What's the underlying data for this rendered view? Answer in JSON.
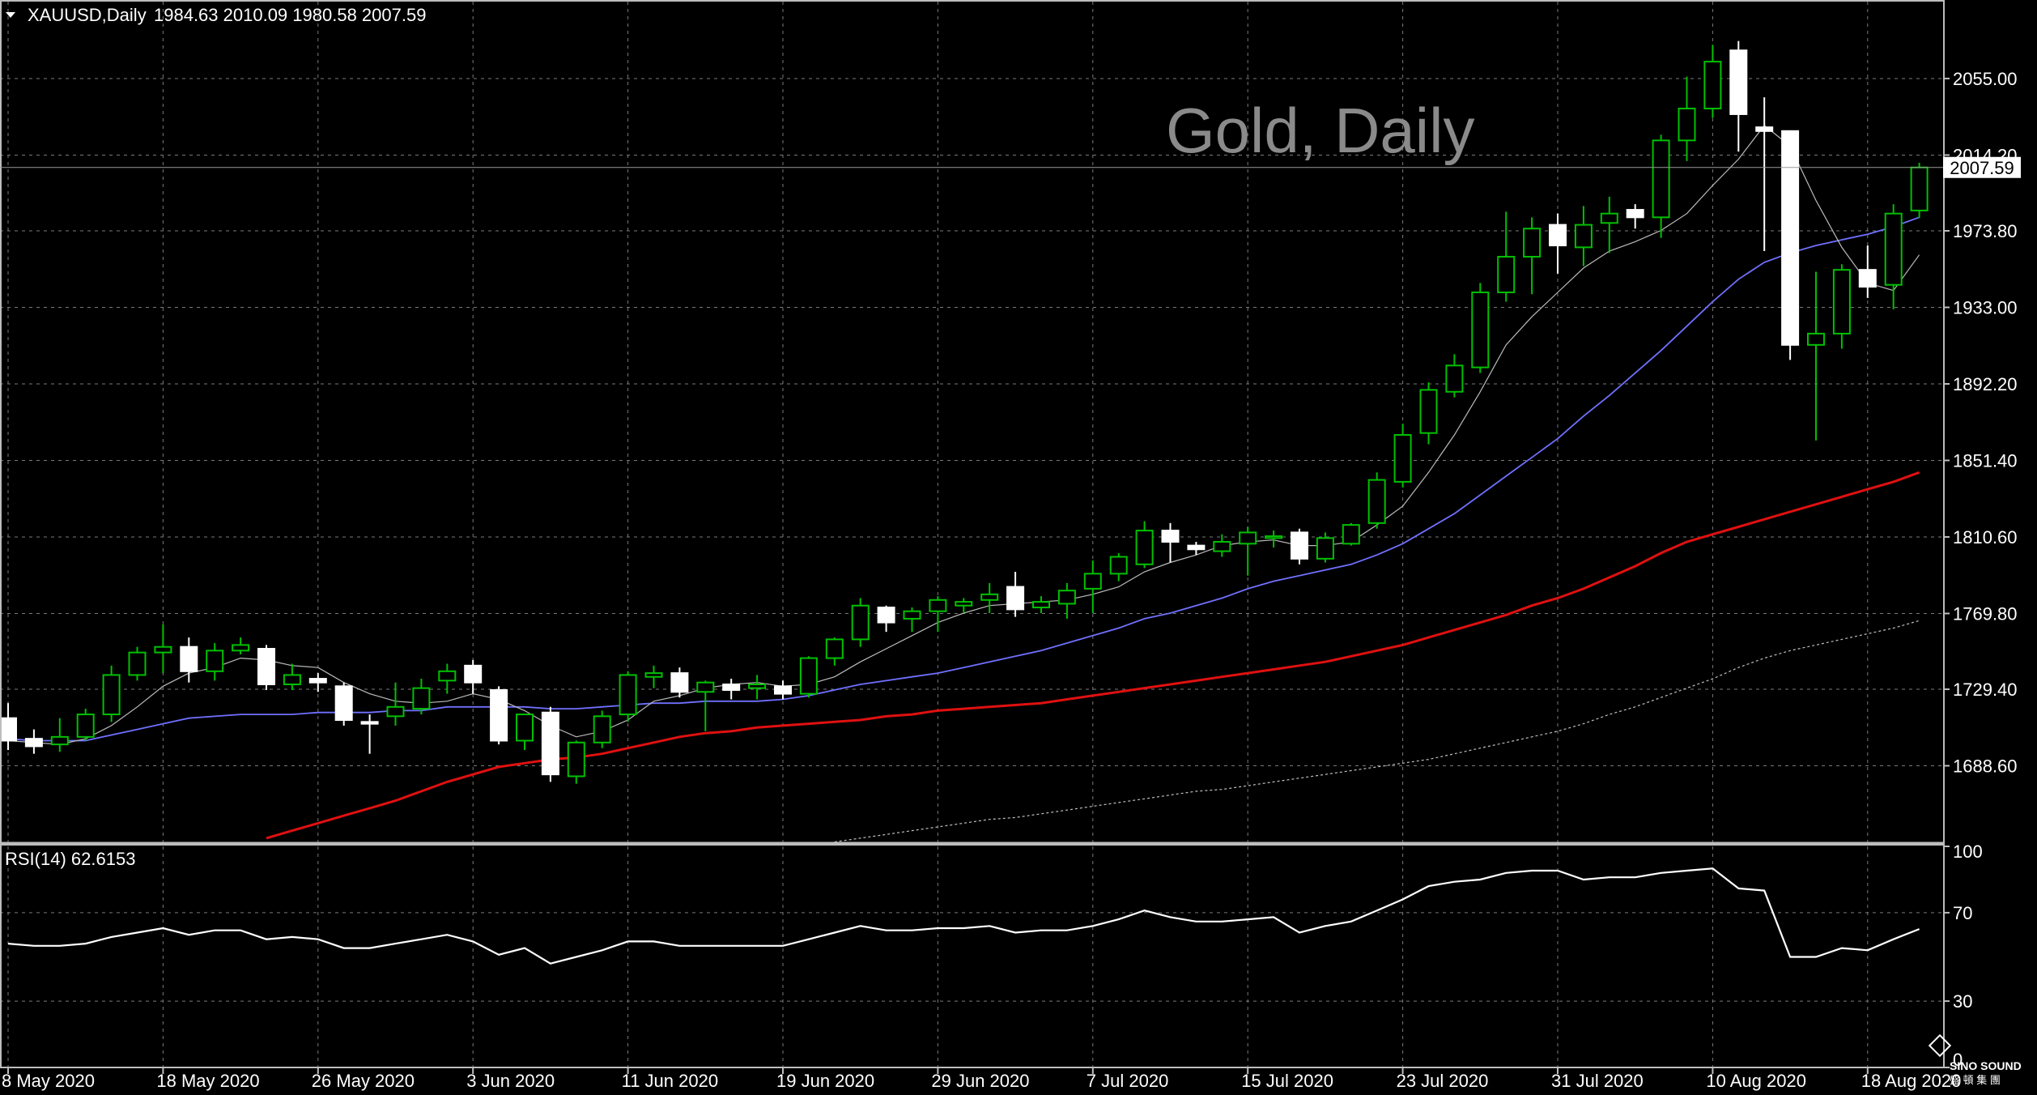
{
  "header": {
    "symbol_text": "XAUUSD,Daily",
    "ohlc_text": "1984.63 2010.09 1980.58 2007.59"
  },
  "watermark": "Gold, Daily",
  "rsi_header": "RSI(14) 62.6153",
  "current_price_label": "2007.59",
  "logo_text": "SINO SOUND",
  "logo_subtext": "盛 頓 集 團",
  "colors": {
    "background": "#000000",
    "grid": "#7a7a7a",
    "bull_candle": "#00c000",
    "bear_candle": "#ffffff",
    "ma_fast": "#bcbcbc",
    "ma_mid": "#7070ff",
    "ma_slow": "#e01010",
    "ma_long": "#c0c0c0",
    "rsi_line": "#ffffff"
  },
  "chart_data": [
    {
      "type": "candlestick",
      "name": "XAUUSD,Daily",
      "ylim": [
        1647.8,
        2096.0
      ],
      "y_ticks": [
        2055.0,
        2014.2,
        1973.8,
        1933.0,
        1892.2,
        1851.4,
        1810.6,
        1769.8,
        1729.4,
        1688.6
      ],
      "y_tick_labels": [
        "2055.00",
        "2014.20",
        "1973.80",
        "1933.00",
        "1892.20",
        "1851.40",
        "1810.60",
        "1769.80",
        "1729.40",
        "1688.60"
      ],
      "x_tick_labels": [
        "8 May 2020",
        "18 May 2020",
        "26 May 2020",
        "3 Jun 2020",
        "11 Jun 2020",
        "19 Jun 2020",
        "29 Jun 2020",
        "7 Jul 2020",
        "15 Jul 2020",
        "23 Jul 2020",
        "31 Jul 2020",
        "10 Aug 2020",
        "18 Aug 2020"
      ],
      "x_tick_index": [
        0,
        6,
        12,
        18,
        24,
        30,
        36,
        42,
        48,
        54,
        60,
        66,
        72
      ],
      "grid": true,
      "current_price": 2007.59,
      "candles": [
        {
          "o": 1714,
          "h": 1722,
          "l": 1697,
          "c": 1702
        },
        {
          "o": 1703,
          "h": 1708,
          "l": 1695,
          "c": 1699
        },
        {
          "o": 1700,
          "h": 1714,
          "l": 1696,
          "c": 1704
        },
        {
          "o": 1704,
          "h": 1719,
          "l": 1702,
          "c": 1716
        },
        {
          "o": 1716,
          "h": 1742,
          "l": 1712,
          "c": 1737
        },
        {
          "o": 1737,
          "h": 1752,
          "l": 1734,
          "c": 1749
        },
        {
          "o": 1749,
          "h": 1764,
          "l": 1738,
          "c": 1752
        },
        {
          "o": 1752,
          "h": 1757,
          "l": 1733,
          "c": 1739
        },
        {
          "o": 1739,
          "h": 1754,
          "l": 1734,
          "c": 1750
        },
        {
          "o": 1750,
          "h": 1757,
          "l": 1748,
          "c": 1753
        },
        {
          "o": 1751,
          "h": 1753,
          "l": 1729,
          "c": 1732
        },
        {
          "o": 1732,
          "h": 1743,
          "l": 1729,
          "c": 1737
        },
        {
          "o": 1735,
          "h": 1738,
          "l": 1728,
          "c": 1733
        },
        {
          "o": 1731,
          "h": 1733,
          "l": 1710,
          "c": 1713
        },
        {
          "o": 1712,
          "h": 1716,
          "l": 1695,
          "c": 1711
        },
        {
          "o": 1715,
          "h": 1733,
          "l": 1710,
          "c": 1720
        },
        {
          "o": 1719,
          "h": 1735,
          "l": 1716,
          "c": 1730
        },
        {
          "o": 1734,
          "h": 1743,
          "l": 1727,
          "c": 1739
        },
        {
          "o": 1742,
          "h": 1745,
          "l": 1727,
          "c": 1733
        },
        {
          "o": 1729,
          "h": 1731,
          "l": 1700,
          "c": 1702
        },
        {
          "o": 1702,
          "h": 1712,
          "l": 1697,
          "c": 1716
        },
        {
          "o": 1717,
          "h": 1720,
          "l": 1680,
          "c": 1684
        },
        {
          "o": 1683,
          "h": 1702,
          "l": 1679,
          "c": 1701
        },
        {
          "o": 1701,
          "h": 1718,
          "l": 1698,
          "c": 1715
        },
        {
          "o": 1716,
          "h": 1739,
          "l": 1712,
          "c": 1737
        },
        {
          "o": 1736,
          "h": 1742,
          "l": 1730,
          "c": 1738
        },
        {
          "o": 1738,
          "h": 1741,
          "l": 1725,
          "c": 1728
        },
        {
          "o": 1728,
          "h": 1734,
          "l": 1707,
          "c": 1733
        },
        {
          "o": 1732,
          "h": 1735,
          "l": 1724,
          "c": 1729
        },
        {
          "o": 1730,
          "h": 1737,
          "l": 1724,
          "c": 1732
        },
        {
          "o": 1731,
          "h": 1734,
          "l": 1724,
          "c": 1727
        },
        {
          "o": 1727,
          "h": 1747,
          "l": 1725,
          "c": 1746
        },
        {
          "o": 1746,
          "h": 1757,
          "l": 1742,
          "c": 1756
        },
        {
          "o": 1756,
          "h": 1778,
          "l": 1752,
          "c": 1774
        },
        {
          "o": 1773,
          "h": 1774,
          "l": 1760,
          "c": 1765
        },
        {
          "o": 1767,
          "h": 1773,
          "l": 1760,
          "c": 1771
        },
        {
          "o": 1771,
          "h": 1779,
          "l": 1760,
          "c": 1777
        },
        {
          "o": 1774,
          "h": 1778,
          "l": 1770,
          "c": 1776
        },
        {
          "o": 1777,
          "h": 1786,
          "l": 1770,
          "c": 1780
        },
        {
          "o": 1784,
          "h": 1792,
          "l": 1768,
          "c": 1772
        },
        {
          "o": 1773,
          "h": 1779,
          "l": 1770,
          "c": 1776
        },
        {
          "o": 1775,
          "h": 1786,
          "l": 1767,
          "c": 1782
        },
        {
          "o": 1783,
          "h": 1798,
          "l": 1770,
          "c": 1791
        },
        {
          "o": 1791,
          "h": 1802,
          "l": 1787,
          "c": 1800
        },
        {
          "o": 1796,
          "h": 1819,
          "l": 1794,
          "c": 1814
        },
        {
          "o": 1814,
          "h": 1818,
          "l": 1797,
          "c": 1808
        },
        {
          "o": 1806,
          "h": 1808,
          "l": 1801,
          "c": 1804
        },
        {
          "o": 1803,
          "h": 1812,
          "l": 1800,
          "c": 1808
        },
        {
          "o": 1807,
          "h": 1816,
          "l": 1790,
          "c": 1813
        },
        {
          "o": 1810,
          "h": 1814,
          "l": 1805,
          "c": 1811
        },
        {
          "o": 1813,
          "h": 1815,
          "l": 1796,
          "c": 1799
        },
        {
          "o": 1799,
          "h": 1813,
          "l": 1797,
          "c": 1810
        },
        {
          "o": 1807,
          "h": 1818,
          "l": 1806,
          "c": 1817
        },
        {
          "o": 1818,
          "h": 1845,
          "l": 1815,
          "c": 1841
        },
        {
          "o": 1840,
          "h": 1871,
          "l": 1837,
          "c": 1865
        },
        {
          "o": 1866,
          "h": 1893,
          "l": 1860,
          "c": 1889
        },
        {
          "o": 1888,
          "h": 1908,
          "l": 1885,
          "c": 1902
        },
        {
          "o": 1901,
          "h": 1946,
          "l": 1898,
          "c": 1941
        },
        {
          "o": 1941,
          "h": 1984,
          "l": 1936,
          "c": 1960
        },
        {
          "o": 1960,
          "h": 1981,
          "l": 1940,
          "c": 1975
        },
        {
          "o": 1977,
          "h": 1983,
          "l": 1951,
          "c": 1966
        },
        {
          "o": 1965,
          "h": 1987,
          "l": 1955,
          "c": 1977
        },
        {
          "o": 1978,
          "h": 1992,
          "l": 1962,
          "c": 1983
        },
        {
          "o": 1985,
          "h": 1988,
          "l": 1975,
          "c": 1981
        },
        {
          "o": 1981,
          "h": 2025,
          "l": 1970,
          "c": 2022
        },
        {
          "o": 2022,
          "h": 2056,
          "l": 2011,
          "c": 2039
        },
        {
          "o": 2039,
          "h": 2073,
          "l": 2034,
          "c": 2064
        },
        {
          "o": 2070,
          "h": 2075,
          "l": 2016,
          "c": 2036
        },
        {
          "o": 2029,
          "h": 2045,
          "l": 1963,
          "c": 2027
        },
        {
          "o": 2027,
          "h": 2027,
          "l": 1905,
          "c": 1913
        },
        {
          "o": 1913,
          "h": 1952,
          "l": 1862,
          "c": 1919
        },
        {
          "o": 1919,
          "h": 1956,
          "l": 1911,
          "c": 1953
        },
        {
          "o": 1953,
          "h": 1966,
          "l": 1938,
          "c": 1944
        },
        {
          "o": 1945,
          "h": 1988,
          "l": 1932,
          "c": 1983
        },
        {
          "o": 1984.63,
          "h": 2010.09,
          "l": 1980.58,
          "c": 2007.59
        }
      ],
      "ma_fast": [
        1702,
        1701,
        1700,
        1703,
        1710,
        1720,
        1731,
        1738,
        1741,
        1746,
        1745,
        1742,
        1741,
        1733,
        1727,
        1723,
        1722,
        1723,
        1727,
        1724,
        1718,
        1710,
        1704,
        1707,
        1713,
        1723,
        1726,
        1730,
        1732,
        1733,
        1731,
        1732,
        1736,
        1744,
        1751,
        1758,
        1765,
        1770,
        1774,
        1775,
        1776,
        1777,
        1780,
        1784,
        1792,
        1797,
        1801,
        1806,
        1808,
        1809,
        1806,
        1806,
        1808,
        1817,
        1827,
        1845,
        1865,
        1888,
        1913,
        1928,
        1941,
        1954,
        1963,
        1968,
        1974,
        1983,
        1998,
        2012,
        2030,
        2019,
        1990,
        1965,
        1946,
        1942,
        1961
      ],
      "ma_mid": [
        1703,
        1702,
        1702,
        1702,
        1705,
        1708,
        1711,
        1714,
        1715,
        1716,
        1716,
        1716,
        1717,
        1717,
        1717,
        1718,
        1718,
        1720,
        1720,
        1720,
        1720,
        1719,
        1719,
        1720,
        1721,
        1722,
        1722,
        1723,
        1723,
        1723,
        1724,
        1726,
        1729,
        1732,
        1734,
        1736,
        1738,
        1741,
        1744,
        1747,
        1750,
        1754,
        1758,
        1762,
        1767,
        1770,
        1774,
        1778,
        1783,
        1787,
        1790,
        1793,
        1796,
        1801,
        1807,
        1815,
        1823,
        1833,
        1843,
        1853,
        1863,
        1875,
        1886,
        1898,
        1910,
        1923,
        1936,
        1948,
        1957,
        1962,
        1966,
        1969,
        1972,
        1976,
        1981
      ],
      "ma_slow": [
        null,
        null,
        null,
        null,
        null,
        null,
        null,
        null,
        null,
        null,
        1650,
        1654,
        1658,
        1662,
        1666,
        1670,
        1675,
        1680,
        1684,
        1688,
        1690,
        1692,
        1693,
        1695,
        1698,
        1701,
        1704,
        1706,
        1707,
        1709,
        1710,
        1711,
        1712,
        1713,
        1715,
        1716,
        1718,
        1719,
        1720,
        1721,
        1722,
        1724,
        1726,
        1728,
        1730,
        1732,
        1734,
        1736,
        1738,
        1740,
        1742,
        1744,
        1747,
        1750,
        1753,
        1757,
        1761,
        1765,
        1769,
        1774,
        1778,
        1783,
        1789,
        1795,
        1802,
        1808,
        1812,
        1816,
        1820,
        1824,
        1828,
        1832,
        1836,
        1840,
        1845
      ],
      "ma_long": [
        null,
        null,
        null,
        null,
        null,
        null,
        null,
        null,
        null,
        null,
        null,
        null,
        null,
        null,
        null,
        null,
        null,
        null,
        null,
        null,
        null,
        null,
        null,
        null,
        null,
        null,
        null,
        null,
        null,
        null,
        null,
        null,
        1648,
        1650,
        1652,
        1654,
        1656,
        1658,
        1660,
        1661,
        1663,
        1665,
        1667,
        1669,
        1671,
        1673,
        1675,
        1676,
        1678,
        1680,
        1682,
        1684,
        1686,
        1688,
        1690,
        1692,
        1695,
        1698,
        1701,
        1704,
        1707,
        1711,
        1716,
        1720,
        1725,
        1730,
        1735,
        1741,
        1746,
        1750,
        1753,
        1756,
        1759,
        1762,
        1766
      ]
    },
    {
      "type": "line",
      "name": "RSI(14) 62.6153",
      "ylim": [
        0,
        100
      ],
      "y_ticks": [
        100,
        70,
        30,
        0
      ],
      "y_tick_labels": [
        "100",
        "70",
        "30",
        "0"
      ],
      "grid": true,
      "values": [
        56,
        55,
        55,
        56,
        59,
        61,
        63,
        60,
        62,
        62,
        58,
        59,
        58,
        54,
        54,
        56,
        58,
        60,
        57,
        51,
        54,
        47,
        50,
        53,
        57,
        57,
        55,
        55,
        55,
        55,
        55,
        58,
        61,
        64,
        62,
        62,
        63,
        63,
        64,
        61,
        62,
        62,
        64,
        67,
        71,
        68,
        66,
        66,
        67,
        68,
        61,
        64,
        66,
        71,
        76,
        82,
        84,
        85,
        88,
        89,
        89,
        85,
        86,
        86,
        88,
        89,
        90,
        81,
        80,
        50,
        50,
        54,
        53,
        58,
        62.6153
      ]
    }
  ]
}
